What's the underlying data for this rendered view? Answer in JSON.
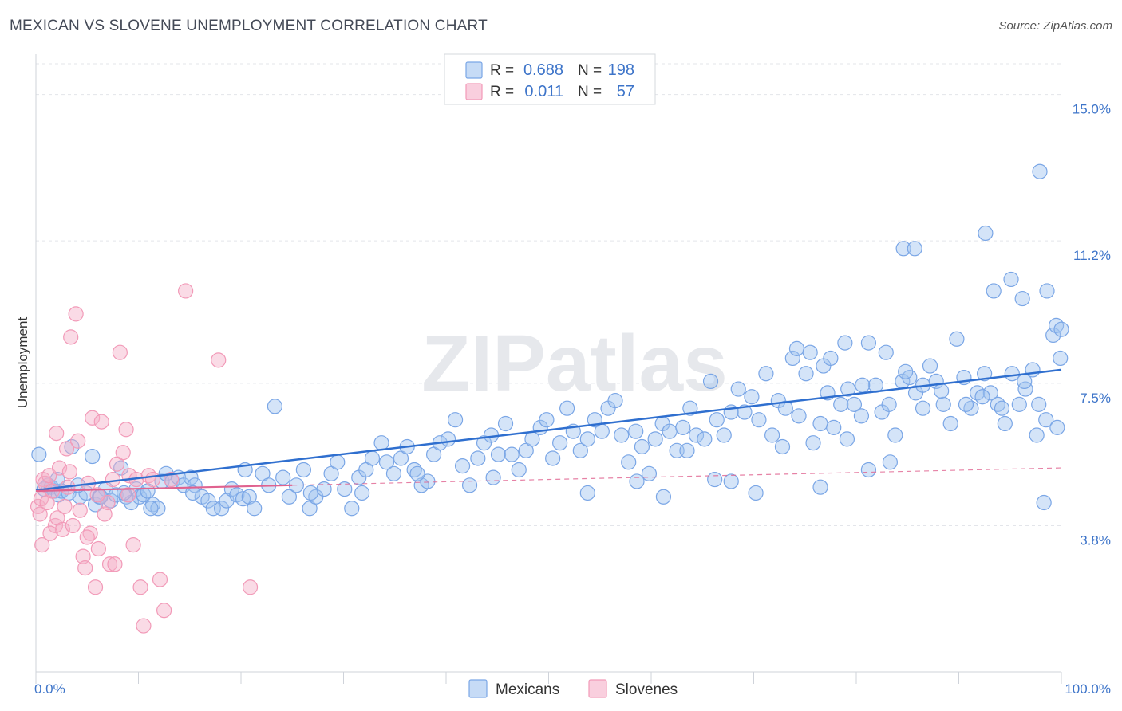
{
  "chart_data": {
    "type": "scatter",
    "title": "MEXICAN VS SLOVENE UNEMPLOYMENT CORRELATION CHART",
    "source": "Source: ZipAtlas.com",
    "xlabel": "",
    "ylabel": "Unemployment",
    "xlim": [
      0,
      100
    ],
    "ylim": [
      0,
      15.8
    ],
    "x_tick_labels": [
      "0.0%",
      "100.0%"
    ],
    "y_ticks": [
      {
        "value": 3.8,
        "label": "3.8%"
      },
      {
        "value": 7.5,
        "label": "7.5%"
      },
      {
        "value": 11.2,
        "label": "11.2%"
      },
      {
        "value": 15.0,
        "label": "15.0%"
      }
    ],
    "grid": true,
    "watermark": "ZIPatlas",
    "legend_position": "top-center",
    "stats": [
      {
        "series": "Mexicans",
        "r_label": "R =",
        "r_value": "0.688",
        "n_label": "N =",
        "n_value": "198",
        "color": "#7aa6e6"
      },
      {
        "series": "Slovenes",
        "r_label": "R =",
        "r_value": "0.011",
        "n_label": "N =",
        "n_value": "57",
        "color": "#f29ab8"
      }
    ],
    "series": [
      {
        "name": "Mexicans",
        "color": "#7aa6e6",
        "fill": "rgba(160,195,240,0.45)",
        "line_color": "#2f6fcf",
        "trend": {
          "x": [
            0,
            100
          ],
          "y": [
            4.72,
            7.85
          ],
          "dashed_from": null
        },
        "points": [
          [
            0.3,
            5.65
          ],
          [
            0.8,
            4.75
          ],
          [
            1.2,
            4.85
          ],
          [
            1.5,
            4.8
          ],
          [
            1.8,
            4.7
          ],
          [
            2.2,
            4.6
          ],
          [
            2.5,
            4.7
          ],
          [
            3.2,
            4.65
          ],
          [
            4.3,
            4.55
          ],
          [
            4.9,
            4.65
          ],
          [
            5.5,
            5.6
          ],
          [
            5.8,
            4.35
          ],
          [
            6.2,
            4.55
          ],
          [
            6.8,
            4.75
          ],
          [
            7.3,
            4.45
          ],
          [
            7.8,
            4.6
          ],
          [
            8.3,
            5.3
          ],
          [
            8.8,
            4.55
          ],
          [
            9.3,
            4.4
          ],
          [
            9.8,
            4.75
          ],
          [
            10.1,
            4.55
          ],
          [
            10.5,
            4.6
          ],
          [
            10.9,
            4.7
          ],
          [
            11.4,
            4.35
          ],
          [
            11.9,
            4.25
          ],
          [
            12.3,
            4.95
          ],
          [
            12.7,
            5.15
          ],
          [
            13.3,
            4.95
          ],
          [
            13.9,
            5.05
          ],
          [
            14.4,
            4.85
          ],
          [
            15.1,
            5.05
          ],
          [
            15.5,
            4.85
          ],
          [
            16.2,
            4.55
          ],
          [
            16.8,
            4.45
          ],
          [
            17.3,
            4.25
          ],
          [
            18.1,
            4.25
          ],
          [
            18.6,
            4.45
          ],
          [
            19.1,
            4.75
          ],
          [
            19.6,
            4.6
          ],
          [
            20.2,
            4.5
          ],
          [
            20.8,
            4.55
          ],
          [
            21.3,
            4.25
          ],
          [
            22.1,
            5.15
          ],
          [
            22.7,
            4.85
          ],
          [
            23.3,
            6.9
          ],
          [
            24.1,
            5.05
          ],
          [
            24.7,
            4.55
          ],
          [
            25.4,
            4.85
          ],
          [
            26.1,
            5.25
          ],
          [
            26.7,
            4.25
          ],
          [
            27.3,
            4.55
          ],
          [
            28.1,
            4.75
          ],
          [
            28.8,
            5.15
          ],
          [
            29.4,
            5.45
          ],
          [
            30.1,
            4.75
          ],
          [
            30.8,
            4.25
          ],
          [
            31.5,
            5.05
          ],
          [
            32.2,
            5.25
          ],
          [
            32.8,
            5.55
          ],
          [
            33.7,
            5.95
          ],
          [
            34.2,
            5.45
          ],
          [
            34.9,
            5.15
          ],
          [
            35.6,
            5.55
          ],
          [
            36.2,
            5.85
          ],
          [
            36.9,
            5.25
          ],
          [
            37.6,
            4.85
          ],
          [
            38.2,
            4.95
          ],
          [
            38.8,
            5.65
          ],
          [
            39.4,
            5.95
          ],
          [
            40.2,
            6.05
          ],
          [
            40.9,
            6.55
          ],
          [
            41.6,
            5.35
          ],
          [
            42.3,
            4.85
          ],
          [
            43.1,
            5.55
          ],
          [
            43.7,
            5.95
          ],
          [
            44.4,
            6.15
          ],
          [
            45.1,
            5.65
          ],
          [
            45.8,
            6.45
          ],
          [
            46.4,
            5.65
          ],
          [
            47.1,
            5.25
          ],
          [
            47.8,
            5.75
          ],
          [
            48.4,
            6.05
          ],
          [
            49.2,
            6.35
          ],
          [
            49.8,
            6.55
          ],
          [
            50.4,
            5.55
          ],
          [
            51.1,
            5.95
          ],
          [
            51.8,
            6.85
          ],
          [
            52.4,
            6.25
          ],
          [
            53.1,
            5.75
          ],
          [
            53.8,
            6.05
          ],
          [
            54.5,
            6.55
          ],
          [
            55.2,
            6.25
          ],
          [
            55.8,
            6.85
          ],
          [
            56.5,
            7.05
          ],
          [
            57.1,
            6.15
          ],
          [
            57.8,
            5.45
          ],
          [
            58.5,
            6.25
          ],
          [
            59.1,
            5.85
          ],
          [
            59.8,
            5.15
          ],
          [
            60.4,
            6.05
          ],
          [
            61.1,
            6.45
          ],
          [
            61.8,
            6.25
          ],
          [
            62.5,
            5.75
          ],
          [
            63.1,
            6.35
          ],
          [
            63.8,
            6.85
          ],
          [
            64.4,
            6.15
          ],
          [
            65.2,
            6.05
          ],
          [
            65.8,
            7.55
          ],
          [
            66.4,
            6.55
          ],
          [
            67.1,
            6.15
          ],
          [
            67.8,
            6.75
          ],
          [
            68.5,
            7.35
          ],
          [
            69.1,
            6.75
          ],
          [
            69.8,
            7.15
          ],
          [
            70.5,
            6.55
          ],
          [
            71.2,
            7.75
          ],
          [
            71.8,
            6.15
          ],
          [
            72.4,
            7.05
          ],
          [
            73.1,
            6.85
          ],
          [
            73.8,
            8.15
          ],
          [
            74.4,
            6.65
          ],
          [
            75.1,
            7.75
          ],
          [
            75.8,
            5.95
          ],
          [
            76.5,
            6.45
          ],
          [
            77.2,
            7.25
          ],
          [
            77.8,
            6.35
          ],
          [
            78.5,
            6.95
          ],
          [
            79.2,
            7.35
          ],
          [
            79.8,
            6.95
          ],
          [
            80.5,
            6.65
          ],
          [
            81.2,
            8.55
          ],
          [
            81.9,
            7.45
          ],
          [
            82.5,
            6.75
          ],
          [
            83.2,
            6.95
          ],
          [
            83.8,
            6.15
          ],
          [
            84.5,
            7.55
          ],
          [
            85.2,
            7.65
          ],
          [
            85.8,
            7.25
          ],
          [
            86.5,
            6.85
          ],
          [
            87.2,
            7.95
          ],
          [
            87.8,
            7.55
          ],
          [
            88.5,
            6.95
          ],
          [
            89.2,
            6.45
          ],
          [
            89.8,
            8.65
          ],
          [
            90.5,
            7.65
          ],
          [
            91.2,
            6.85
          ],
          [
            91.8,
            7.25
          ],
          [
            92.5,
            7.75
          ],
          [
            93.1,
            7.25
          ],
          [
            93.8,
            6.95
          ],
          [
            94.5,
            6.45
          ],
          [
            95.2,
            7.75
          ],
          [
            95.9,
            6.95
          ],
          [
            96.5,
            7.35
          ],
          [
            97.2,
            7.85
          ],
          [
            97.8,
            6.95
          ],
          [
            98.5,
            6.55
          ],
          [
            99.2,
            8.75
          ],
          [
            99.6,
            6.35
          ],
          [
            99.9,
            8.15
          ],
          [
            84.6,
            11.0
          ],
          [
            85.7,
            11.0
          ],
          [
            92.6,
            11.4
          ],
          [
            93.4,
            9.9
          ],
          [
            95.1,
            10.2
          ],
          [
            96.2,
            9.7
          ],
          [
            97.9,
            13.0
          ],
          [
            98.6,
            9.9
          ],
          [
            99.5,
            9.0
          ],
          [
            100,
            8.9
          ],
          [
            74.2,
            8.4
          ],
          [
            75.5,
            8.3
          ],
          [
            76.8,
            7.95
          ],
          [
            77.5,
            8.15
          ],
          [
            78.9,
            8.55
          ],
          [
            80.6,
            7.45
          ],
          [
            82.9,
            8.3
          ],
          [
            84.8,
            7.8
          ],
          [
            86.5,
            7.45
          ],
          [
            88.3,
            7.3
          ],
          [
            90.7,
            6.95
          ],
          [
            92.3,
            7.15
          ],
          [
            94.2,
            6.85
          ],
          [
            96.4,
            7.55
          ],
          [
            97.6,
            6.15
          ],
          [
            98.3,
            4.4
          ],
          [
            76.5,
            4.8
          ],
          [
            67.8,
            4.95
          ],
          [
            61.2,
            4.55
          ],
          [
            53.8,
            4.65
          ],
          [
            44.6,
            5.05
          ],
          [
            37.2,
            5.15
          ],
          [
            31.8,
            4.65
          ],
          [
            26.8,
            4.65
          ],
          [
            20.4,
            5.25
          ],
          [
            15.3,
            4.65
          ],
          [
            11.2,
            4.25
          ],
          [
            8.6,
            4.65
          ],
          [
            6.3,
            4.55
          ],
          [
            4.1,
            4.85
          ],
          [
            3.5,
            5.85
          ],
          [
            2.1,
            5.0
          ],
          [
            58.6,
            4.95
          ],
          [
            63.5,
            5.75
          ],
          [
            66.2,
            5.0
          ],
          [
            70.2,
            4.65
          ],
          [
            72.8,
            5.85
          ],
          [
            79.1,
            6.05
          ],
          [
            83.3,
            5.45
          ],
          [
            81.2,
            5.25
          ]
        ]
      },
      {
        "name": "Slovenes",
        "color": "#f29ab8",
        "fill": "rgba(245,175,200,0.45)",
        "line_color": "#e0628f",
        "trend": {
          "x": [
            0,
            100
          ],
          "y": [
            4.7,
            5.3
          ],
          "dashed_from": 25
        },
        "points": [
          [
            0.2,
            4.3
          ],
          [
            0.4,
            4.1
          ],
          [
            0.5,
            4.5
          ],
          [
            0.7,
            5.0
          ],
          [
            0.9,
            4.9
          ],
          [
            1.1,
            4.4
          ],
          [
            1.3,
            5.1
          ],
          [
            1.6,
            4.7
          ],
          [
            1.9,
            3.8
          ],
          [
            2.1,
            4.0
          ],
          [
            2.3,
            5.3
          ],
          [
            2.6,
            3.7
          ],
          [
            2.8,
            4.3
          ],
          [
            3.1,
            4.8
          ],
          [
            3.3,
            5.2
          ],
          [
            3.6,
            3.8
          ],
          [
            3.9,
            9.3
          ],
          [
            4.1,
            6.0
          ],
          [
            4.3,
            4.2
          ],
          [
            4.6,
            3.0
          ],
          [
            4.8,
            2.7
          ],
          [
            5.1,
            4.9
          ],
          [
            5.3,
            3.6
          ],
          [
            5.5,
            6.6
          ],
          [
            5.8,
            2.2
          ],
          [
            6.1,
            3.2
          ],
          [
            6.4,
            6.5
          ],
          [
            6.7,
            4.1
          ],
          [
            7.0,
            4.4
          ],
          [
            7.2,
            2.8
          ],
          [
            7.5,
            5.0
          ],
          [
            7.9,
            5.4
          ],
          [
            8.2,
            8.3
          ],
          [
            8.5,
            5.7
          ],
          [
            8.8,
            6.3
          ],
          [
            9.1,
            5.1
          ],
          [
            9.5,
            3.3
          ],
          [
            9.8,
            5.0
          ],
          [
            10.2,
            2.2
          ],
          [
            10.5,
            1.2
          ],
          [
            11.0,
            5.1
          ],
          [
            11.4,
            5.0
          ],
          [
            12.1,
            2.4
          ],
          [
            12.5,
            1.6
          ],
          [
            13.2,
            5.0
          ],
          [
            14.6,
            9.9
          ],
          [
            17.8,
            8.1
          ],
          [
            20.9,
            2.2
          ],
          [
            0.6,
            3.3
          ],
          [
            1.4,
            3.6
          ],
          [
            2.0,
            6.2
          ],
          [
            3.0,
            5.8
          ],
          [
            3.4,
            8.7
          ],
          [
            5.0,
            3.5
          ],
          [
            6.0,
            4.6
          ],
          [
            7.7,
            2.8
          ],
          [
            9.0,
            4.6
          ]
        ]
      }
    ],
    "legend": {
      "entries": [
        "Mexicans",
        "Slovenes"
      ]
    }
  }
}
